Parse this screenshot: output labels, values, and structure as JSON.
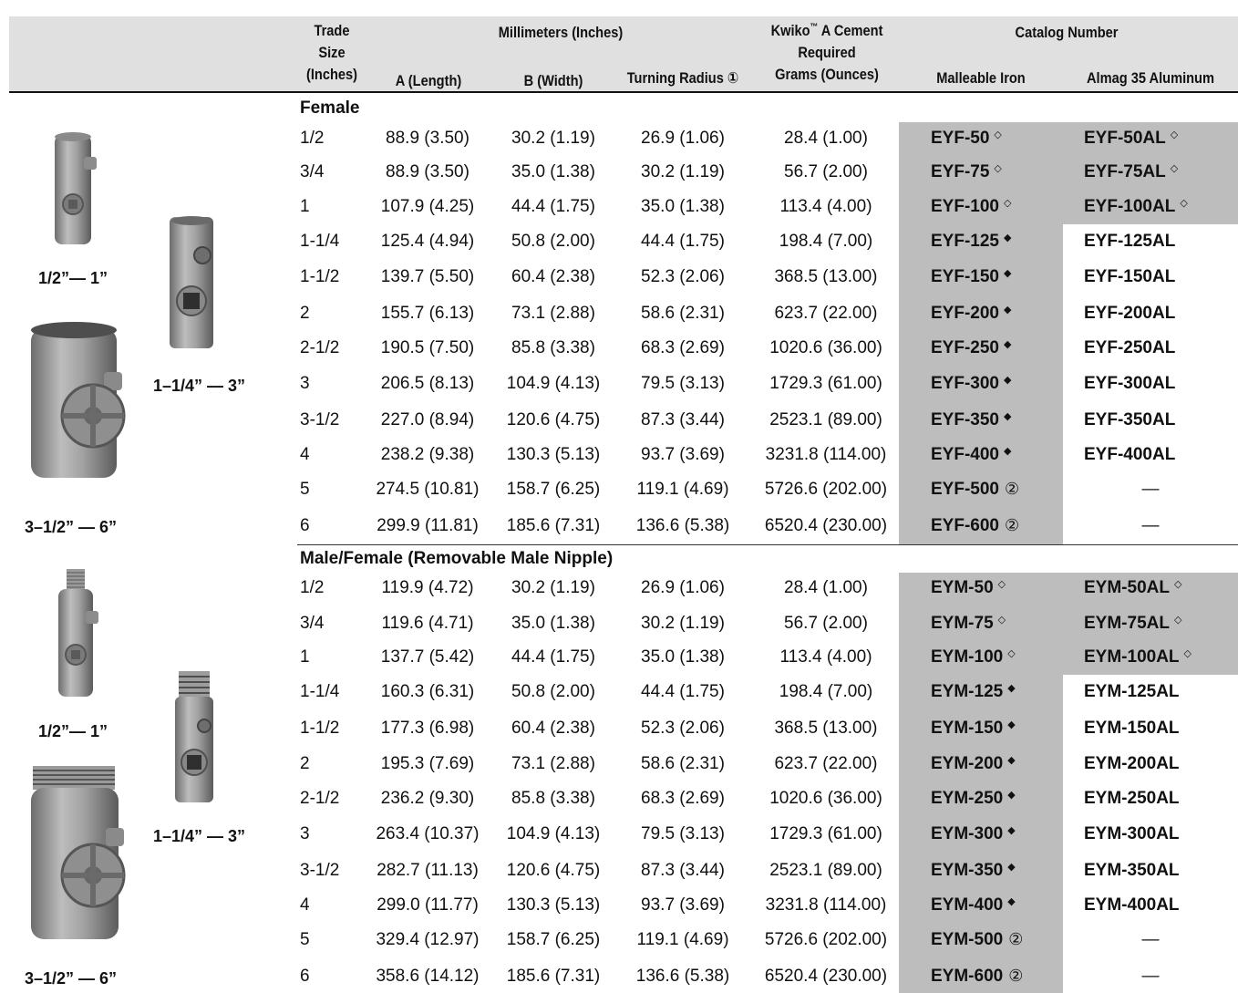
{
  "headers": {
    "trade_size": [
      "Trade",
      "Size",
      "(Inches)"
    ],
    "millimeters_group": "Millimeters (Inches)",
    "a_length": "A (Length)",
    "b_width": "B (Width)",
    "turning_radius": "Turning Radius ①",
    "kwiko_line1": "Kwiko",
    "kwiko_tm": "™",
    "kwiko_line1_rest": " A Cement",
    "kwiko_line2": "Required",
    "grams_ounces": "Grams (Ounces)",
    "catalog_group": "Catalog Number",
    "malleable_iron": "Malleable Iron",
    "almag_aluminum": "Almag 35 Aluminum"
  },
  "marks": {
    "open_diamond": "◇",
    "filled_diamond": "◆",
    "note2": "②"
  },
  "sections": [
    {
      "title": "Female",
      "photo_labels": {
        "small": "1/2”— 1”",
        "medium": "1–1/4” — 3”",
        "large": "3–1/2” — 6”"
      },
      "rows": [
        {
          "size": "1/2",
          "a": "88.9 (3.50)",
          "b": "30.2 (1.19)",
          "radius": "26.9 (1.06)",
          "cement": "28.4 (1.00)",
          "iron": "EYF-50",
          "iron_mark": "◇",
          "alu": "EYF-50AL",
          "alu_mark": "◇",
          "alu_shaded": true
        },
        {
          "size": "3/4",
          "a": "88.9 (3.50)",
          "b": "35.0 (1.38)",
          "radius": "30.2 (1.19)",
          "cement": "56.7 (2.00)",
          "iron": "EYF-75",
          "iron_mark": "◇",
          "alu": "EYF-75AL",
          "alu_mark": "◇",
          "alu_shaded": true
        },
        {
          "size": "1",
          "a": "107.9 (4.25)",
          "b": "44.4 (1.75)",
          "radius": "35.0 (1.38)",
          "cement": "113.4 (4.00)",
          "iron": "EYF-100",
          "iron_mark": "◇",
          "alu": "EYF-100AL",
          "alu_mark": "◇",
          "alu_shaded": true
        },
        {
          "size": "1-1/4",
          "a": "125.4 (4.94)",
          "b": "50.8 (2.00)",
          "radius": "44.4 (1.75)",
          "cement": "198.4 (7.00)",
          "iron": "EYF-125",
          "iron_mark": "◆",
          "alu": "EYF-125AL",
          "alu_mark": "",
          "alu_shaded": false
        },
        {
          "size": "1-1/2",
          "a": "139.7 (5.50)",
          "b": "60.4 (2.38)",
          "radius": "52.3 (2.06)",
          "cement": "368.5 (13.00)",
          "iron": "EYF-150",
          "iron_mark": "◆",
          "alu": "EYF-150AL",
          "alu_mark": "",
          "alu_shaded": false
        },
        {
          "size": "2",
          "a": "155.7 (6.13)",
          "b": "73.1 (2.88)",
          "radius": "58.6 (2.31)",
          "cement": "623.7 (22.00)",
          "iron": "EYF-200",
          "iron_mark": "◆",
          "alu": "EYF-200AL",
          "alu_mark": "",
          "alu_shaded": false
        },
        {
          "size": "2-1/2",
          "a": "190.5 (7.50)",
          "b": "85.8 (3.38)",
          "radius": "68.3 (2.69)",
          "cement": "1020.6 (36.00)",
          "iron": "EYF-250",
          "iron_mark": "◆",
          "alu": "EYF-250AL",
          "alu_mark": "",
          "alu_shaded": false
        },
        {
          "size": "3",
          "a": "206.5 (8.13)",
          "b": "104.9 (4.13)",
          "radius": "79.5 (3.13)",
          "cement": "1729.3 (61.00)",
          "iron": "EYF-300",
          "iron_mark": "◆",
          "alu": "EYF-300AL",
          "alu_mark": "",
          "alu_shaded": false
        },
        {
          "size": "3-1/2",
          "a": "227.0 (8.94)",
          "b": "120.6 (4.75)",
          "radius": "87.3 (3.44)",
          "cement": "2523.1 (89.00)",
          "iron": "EYF-350",
          "iron_mark": "◆",
          "alu": "EYF-350AL",
          "alu_mark": "",
          "alu_shaded": false
        },
        {
          "size": "4",
          "a": "238.2 (9.38)",
          "b": "130.3 (5.13)",
          "radius": "93.7 (3.69)",
          "cement": "3231.8 (114.00)",
          "iron": "EYF-400",
          "iron_mark": "◆",
          "alu": "EYF-400AL",
          "alu_mark": "",
          "alu_shaded": false
        },
        {
          "size": "5",
          "a": "274.5 (10.81)",
          "b": "158.7 (6.25)",
          "radius": "119.1 (4.69)",
          "cement": "5726.6 (202.00)",
          "iron": "EYF-500",
          "iron_mark": "②",
          "alu": "—",
          "alu_mark": "",
          "alu_shaded": false
        },
        {
          "size": "6",
          "a": "299.9 (11.81)",
          "b": "185.6 (7.31)",
          "radius": "136.6 (5.38)",
          "cement": "6520.4 (230.00)",
          "iron": "EYF-600",
          "iron_mark": "②",
          "alu": "—",
          "alu_mark": "",
          "alu_shaded": false
        }
      ]
    },
    {
      "title": "Male/Female (Removable Male Nipple)",
      "photo_labels": {
        "small": "1/2”— 1”",
        "medium": "1–1/4” — 3”",
        "large": "3–1/2” — 6”"
      },
      "rows": [
        {
          "size": "1/2",
          "a": "119.9 (4.72)",
          "b": "30.2 (1.19)",
          "radius": "26.9 (1.06)",
          "cement": "28.4 (1.00)",
          "iron": "EYM-50",
          "iron_mark": "◇",
          "alu": "EYM-50AL",
          "alu_mark": "◇",
          "alu_shaded": true
        },
        {
          "size": "3/4",
          "a": "119.6 (4.71)",
          "b": "35.0 (1.38)",
          "radius": "30.2 (1.19)",
          "cement": "56.7 (2.00)",
          "iron": "EYM-75",
          "iron_mark": "◇",
          "alu": "EYM-75AL",
          "alu_mark": "◇",
          "alu_shaded": true
        },
        {
          "size": "1",
          "a": "137.7 (5.42)",
          "b": "44.4 (1.75)",
          "radius": "35.0 (1.38)",
          "cement": "113.4 (4.00)",
          "iron": "EYM-100",
          "iron_mark": "◇",
          "alu": "EYM-100AL",
          "alu_mark": "◇",
          "alu_shaded": true
        },
        {
          "size": "1-1/4",
          "a": "160.3 (6.31)",
          "b": "50.8 (2.00)",
          "radius": "44.4 (1.75)",
          "cement": "198.4 (7.00)",
          "iron": "EYM-125",
          "iron_mark": "◆",
          "alu": "EYM-125AL",
          "alu_mark": "",
          "alu_shaded": false
        },
        {
          "size": "1-1/2",
          "a": "177.3 (6.98)",
          "b": "60.4 (2.38)",
          "radius": "52.3 (2.06)",
          "cement": "368.5 (13.00)",
          "iron": "EYM-150",
          "iron_mark": "◆",
          "alu": "EYM-150AL",
          "alu_mark": "",
          "alu_shaded": false
        },
        {
          "size": "2",
          "a": "195.3 (7.69)",
          "b": "73.1 (2.88)",
          "radius": "58.6 (2.31)",
          "cement": "623.7 (22.00)",
          "iron": "EYM-200",
          "iron_mark": "◆",
          "alu": "EYM-200AL",
          "alu_mark": "",
          "alu_shaded": false
        },
        {
          "size": "2-1/2",
          "a": "236.2 (9.30)",
          "b": "85.8 (3.38)",
          "radius": "68.3 (2.69)",
          "cement": "1020.6 (36.00)",
          "iron": "EYM-250",
          "iron_mark": "◆",
          "alu": "EYM-250AL",
          "alu_mark": "",
          "alu_shaded": false
        },
        {
          "size": "3",
          "a": "263.4 (10.37)",
          "b": "104.9 (4.13)",
          "radius": "79.5 (3.13)",
          "cement": "1729.3 (61.00)",
          "iron": "EYM-300",
          "iron_mark": "◆",
          "alu": "EYM-300AL",
          "alu_mark": "",
          "alu_shaded": false
        },
        {
          "size": "3-1/2",
          "a": "282.7 (11.13)",
          "b": "120.6 (4.75)",
          "radius": "87.3 (3.44)",
          "cement": "2523.1 (89.00)",
          "iron": "EYM-350",
          "iron_mark": "◆",
          "alu": "EYM-350AL",
          "alu_mark": "",
          "alu_shaded": false
        },
        {
          "size": "4",
          "a": "299.0 (11.77)",
          "b": "130.3 (5.13)",
          "radius": "93.7 (3.69)",
          "cement": "3231.8 (114.00)",
          "iron": "EYM-400",
          "iron_mark": "◆",
          "alu": "EYM-400AL",
          "alu_mark": "",
          "alu_shaded": false
        },
        {
          "size": "5",
          "a": "329.4 (12.97)",
          "b": "158.7 (6.25)",
          "radius": "119.1 (4.69)",
          "cement": "5726.6 (202.00)",
          "iron": "EYM-500",
          "iron_mark": "②",
          "alu": "—",
          "alu_mark": "",
          "alu_shaded": false
        },
        {
          "size": "6",
          "a": "358.6 (14.12)",
          "b": "185.6 (7.31)",
          "radius": "136.6 (5.38)",
          "cement": "6520.4 (230.00)",
          "iron": "EYM-600",
          "iron_mark": "②",
          "alu": "—",
          "alu_mark": "",
          "alu_shaded": false
        }
      ]
    }
  ]
}
